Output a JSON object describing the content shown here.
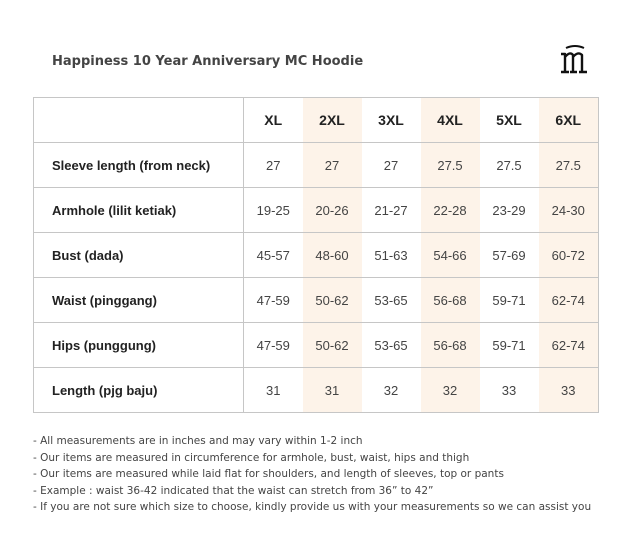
{
  "title": "Happiness 10 Year Anniversary MC Hoodie",
  "logo": {
    "icon": "mc-monogram-logo",
    "color": "#111111"
  },
  "colors": {
    "shade": "#fdf3e9",
    "border": "#c6c6c6"
  },
  "table": {
    "sizes": [
      "XL",
      "2XL",
      "3XL",
      "4XL",
      "5XL",
      "6XL"
    ],
    "rows": [
      {
        "label": "Sleeve length (from neck)",
        "values": [
          "27",
          "27",
          "27",
          "27.5",
          "27.5",
          "27.5"
        ]
      },
      {
        "label": "Armhole (lilit ketiak)",
        "values": [
          "19-25",
          "20-26",
          "21-27",
          "22-28",
          "23-29",
          "24-30"
        ]
      },
      {
        "label": "Bust (dada)",
        "values": [
          "45-57",
          "48-60",
          "51-63",
          "54-66",
          "57-69",
          "60-72"
        ]
      },
      {
        "label": "Waist (pinggang)",
        "values": [
          "47-59",
          "50-62",
          "53-65",
          "56-68",
          "59-71",
          "62-74"
        ]
      },
      {
        "label": "Hips (punggung)",
        "values": [
          "47-59",
          "50-62",
          "53-65",
          "56-68",
          "59-71",
          "62-74"
        ]
      },
      {
        "label": "Length (pjg baju)",
        "values": [
          "31",
          "31",
          "32",
          "32",
          "33",
          "33"
        ]
      }
    ]
  },
  "notes": [
    "- All measurements are in inches and may vary within 1-2 inch",
    "- Our items are measured in circumference for armhole, bust, waist, hips and thigh",
    "- Our items are measured while laid flat for shoulders, and length of sleeves, top or pants",
    "- Example : waist 36-42 indicated that the waist can stretch from 36” to 42”",
    "- If you are not sure which size to choose, kindly provide us with your measurements so we can assist you"
  ]
}
